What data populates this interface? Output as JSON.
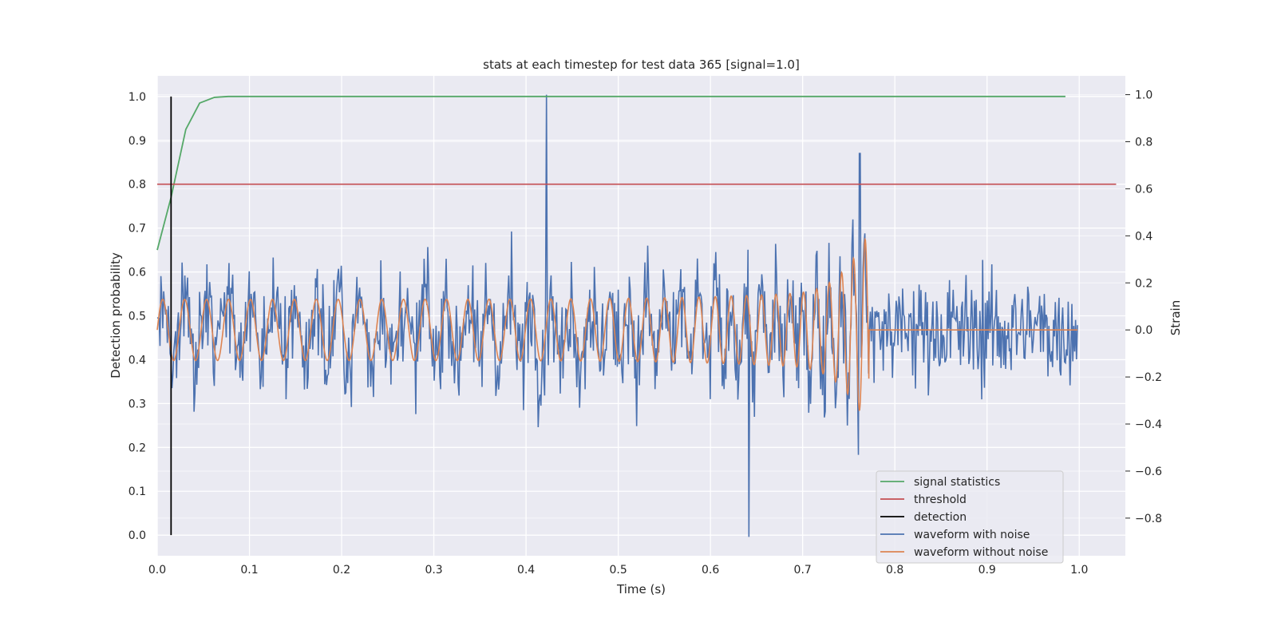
{
  "chart_data": {
    "type": "line",
    "title": "stats at each timestep for test data 365 [signal=1.0]",
    "xlabel": "Time (s)",
    "ylabel_left": "Detection probability",
    "ylabel_right": "Strain",
    "xlim": [
      0.0,
      1.05
    ],
    "ylim_left": [
      -0.047,
      1.047
    ],
    "ylim_right": [
      -0.96,
      1.08
    ],
    "x_ticks": [
      "0.0",
      "0.1",
      "0.2",
      "0.3",
      "0.4",
      "0.5",
      "0.6",
      "0.7",
      "0.8",
      "0.9",
      "1.0"
    ],
    "y_ticks_left": [
      "0.0",
      "0.1",
      "0.2",
      "0.3",
      "0.4",
      "0.5",
      "0.6",
      "0.7",
      "0.8",
      "0.9",
      "1.0"
    ],
    "y_ticks_right": [
      "−0.8",
      "−0.6",
      "−0.4",
      "−0.2",
      "0.0",
      "0.2",
      "0.4",
      "0.6",
      "0.8",
      "1.0"
    ],
    "grid": true,
    "legend_position": "lower-right",
    "series": [
      {
        "name": "signal statistics",
        "axis": "left",
        "color": "#55a868",
        "x": [
          0.0,
          0.015,
          0.031,
          0.046,
          0.062,
          0.077,
          0.1,
          0.2,
          0.4,
          0.6,
          0.8,
          0.985
        ],
        "y": [
          0.65,
          0.77,
          0.925,
          0.985,
          0.998,
          1.0,
          1.0,
          1.0,
          1.0,
          1.0,
          1.0,
          1.0
        ]
      },
      {
        "name": "threshold",
        "axis": "left",
        "color": "#c44e52",
        "x": [
          0.0,
          1.04
        ],
        "y": [
          0.8,
          0.8
        ]
      },
      {
        "name": "detection",
        "axis": "left",
        "color": "#000000",
        "x": [
          0.015,
          0.015
        ],
        "y": [
          0.0,
          1.0
        ]
      },
      {
        "name": "waveform with noise",
        "axis": "right",
        "color": "#4c72b0",
        "x": [
          0.0,
          0.422,
          0.642,
          0.762,
          0.998
        ],
        "y": [
          0.05,
          1.0,
          -0.88,
          0.75,
          0.02
        ],
        "note_samples": 1000
      },
      {
        "name": "waveform without noise",
        "axis": "right",
        "color": "#dd8452",
        "x": [
          0.0,
          0.77,
          0.998
        ],
        "y": [
          0.0,
          0.44,
          0.0
        ]
      }
    ]
  }
}
